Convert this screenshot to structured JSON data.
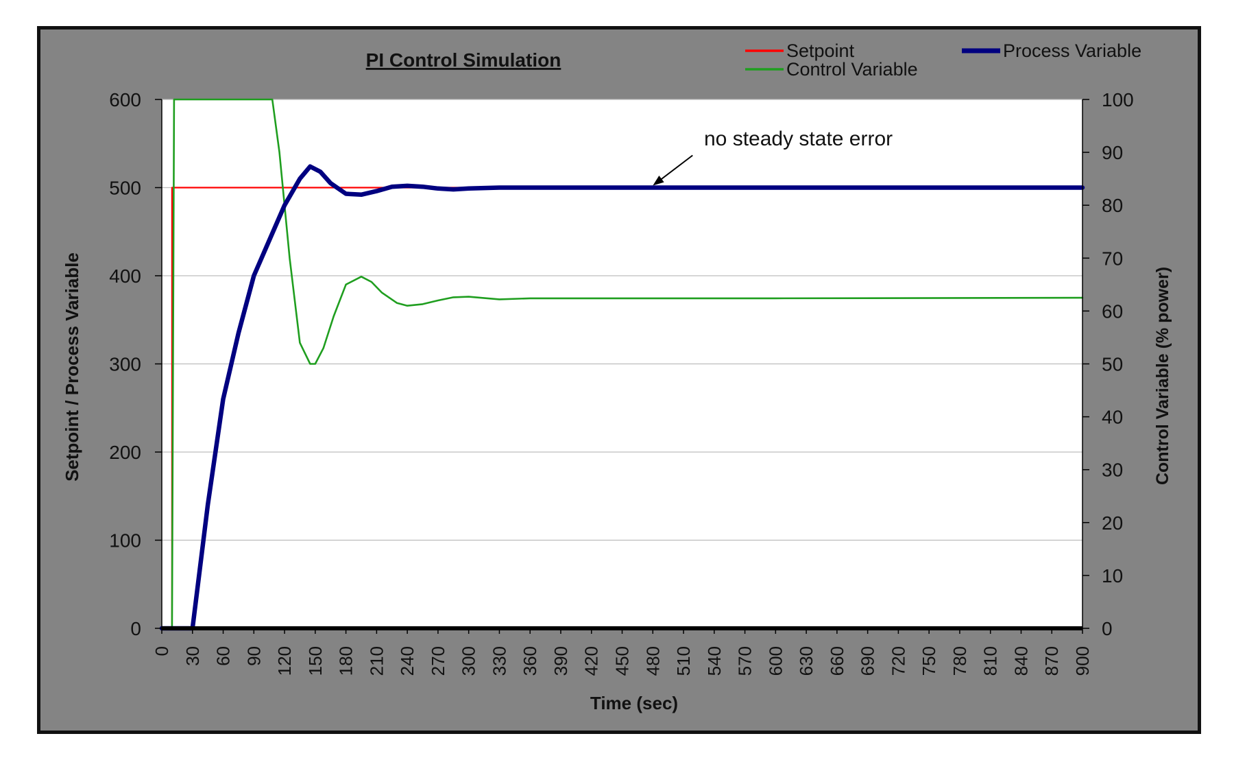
{
  "chart_data": {
    "type": "line",
    "title": "PI Control  Simulation",
    "xlabel": "Time (sec)",
    "ylabel": "Setpoint / Process Variable",
    "ylabel_right": "Control Variable (% power)",
    "xlim": [
      0,
      900
    ],
    "ylim": [
      0,
      600
    ],
    "ylim_right": [
      0,
      100
    ],
    "x_ticks": [
      "0",
      "30",
      "60",
      "90",
      "120",
      "150",
      "180",
      "210",
      "240",
      "270",
      "300",
      "330",
      "360",
      "390",
      "420",
      "450",
      "480",
      "510",
      "540",
      "570",
      "600",
      "630",
      "660",
      "690",
      "720",
      "750",
      "780",
      "810",
      "840",
      "870",
      "900"
    ],
    "y_ticks": [
      "0",
      "100",
      "200",
      "300",
      "400",
      "500",
      "600"
    ],
    "y_right_ticks": [
      "0",
      "10",
      "20",
      "30",
      "40",
      "50",
      "60",
      "70",
      "80",
      "90",
      "100"
    ],
    "grid": true,
    "legend_position": "top-right",
    "annotation": {
      "text": "no steady state error",
      "x": 480,
      "y": 500
    },
    "series": [
      {
        "name": "Setpoint",
        "axis": "left",
        "color": "#ff0000",
        "x": [
          0,
          10,
          10,
          900
        ],
        "y": [
          0,
          0,
          500,
          500
        ]
      },
      {
        "name": "Process Variable",
        "axis": "left",
        "color": "#000080",
        "x": [
          0,
          30,
          45,
          60,
          75,
          90,
          105,
          120,
          135,
          145,
          155,
          165,
          180,
          195,
          210,
          225,
          240,
          255,
          270,
          285,
          300,
          330,
          360,
          420,
          480,
          600,
          900
        ],
        "y": [
          0,
          0,
          140,
          260,
          335,
          400,
          440,
          480,
          510,
          524,
          518,
          505,
          493,
          492,
          496,
          501,
          502,
          501,
          499,
          498,
          499,
          500,
          500,
          500,
          500,
          500,
          500
        ]
      },
      {
        "name": "Control Variable",
        "axis": "right",
        "color": "#1f9e1f",
        "x": [
          0,
          10,
          12,
          30,
          60,
          90,
          108,
          115,
          125,
          135,
          145,
          150,
          158,
          168,
          180,
          195,
          205,
          215,
          230,
          240,
          255,
          270,
          285,
          300,
          330,
          360,
          420,
          600,
          900
        ],
        "y": [
          0,
          0,
          100,
          100,
          100,
          100,
          100,
          90,
          70,
          54,
          50,
          50,
          53,
          59,
          65,
          66.5,
          65.5,
          63.5,
          61.5,
          61,
          61.3,
          62,
          62.6,
          62.7,
          62.2,
          62.4,
          62.4,
          62.4,
          62.5
        ]
      }
    ]
  }
}
